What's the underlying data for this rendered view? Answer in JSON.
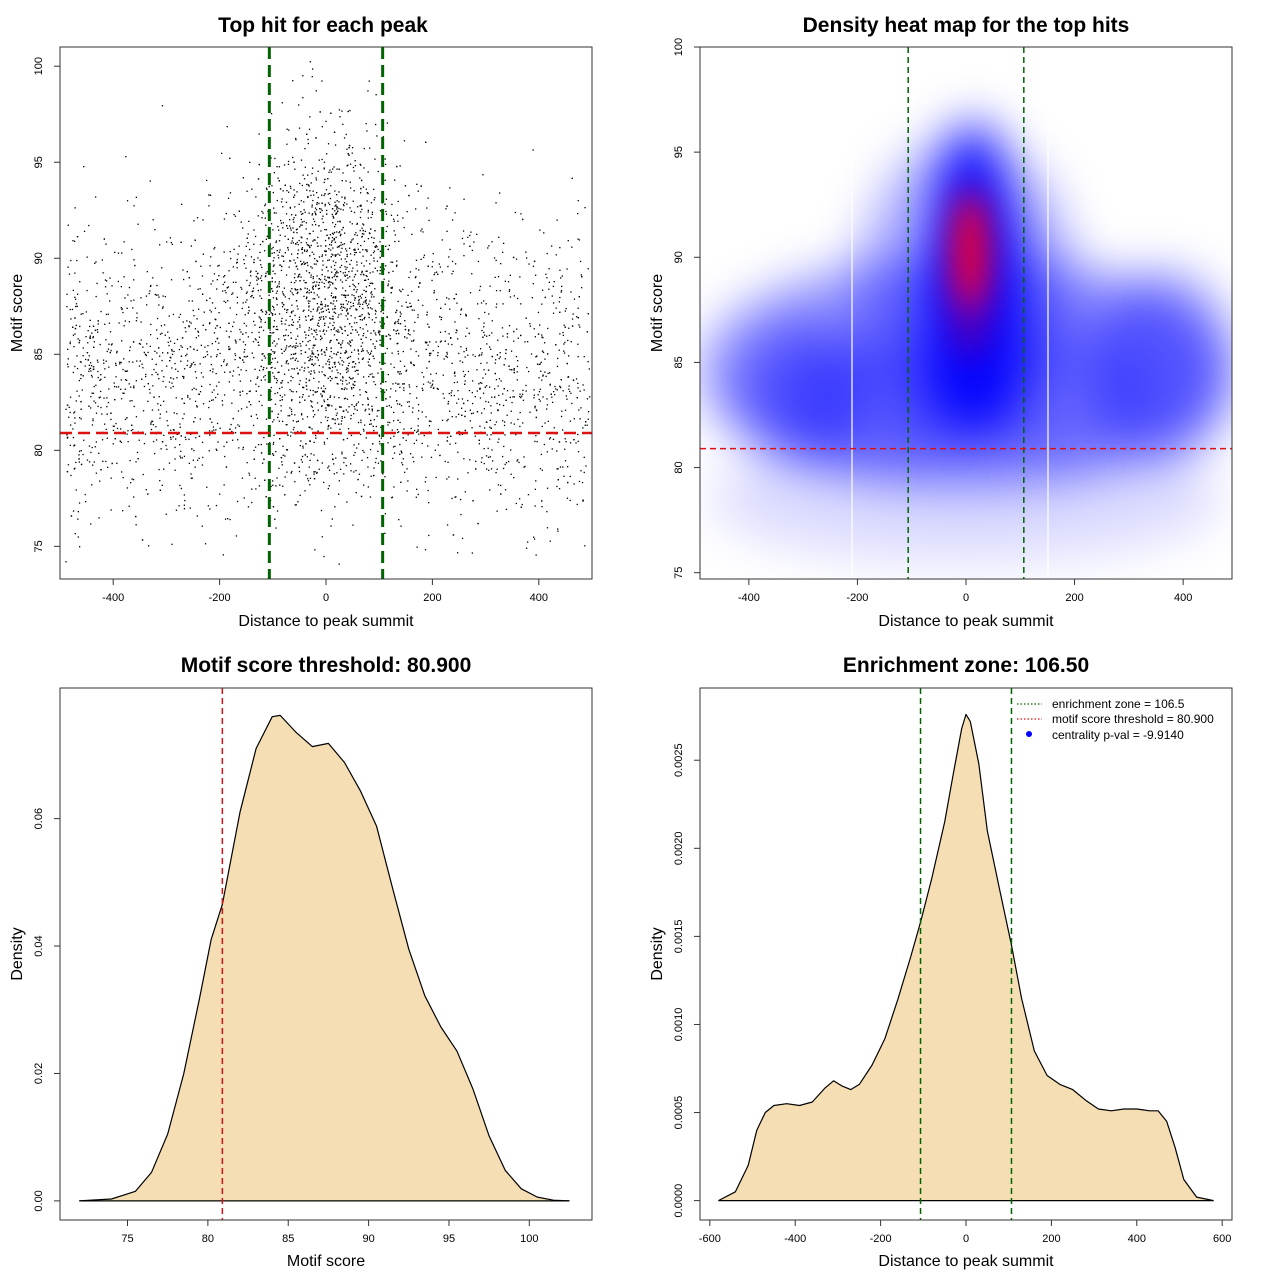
{
  "chart_data": [
    {
      "type": "scatter",
      "title": "Top hit for each peak",
      "xlabel": "Distance to peak summit",
      "ylabel": "Motif score",
      "xlim": [
        -500,
        500
      ],
      "ylim": [
        73.3,
        101.0
      ],
      "xticks": [
        -400,
        -200,
        0,
        200,
        400
      ],
      "xtick_labels": [
        "-400",
        "-200",
        "0",
        "200",
        "400"
      ],
      "yticks": [
        75,
        80,
        85,
        90,
        95,
        100
      ],
      "ytick_labels": [
        "75",
        "80",
        "85",
        "90",
        "95",
        "100"
      ],
      "n_points": 4200,
      "vlines": [
        -106.5,
        106.5
      ],
      "vline_color": "#006400",
      "hline": 80.9,
      "hline_color": "#dd1111",
      "point_color": "#000000"
    },
    {
      "type": "heatmap",
      "title": "Density heat map for the top hits",
      "xlabel": "Distance to peak summit",
      "ylabel": "Motif score",
      "xlim": [
        -490,
        490
      ],
      "ylim": [
        74.7,
        100.0
      ],
      "xticks": [
        -400,
        -200,
        0,
        200,
        400
      ],
      "xtick_labels": [
        "-400",
        "-200",
        "0",
        "200",
        "400"
      ],
      "yticks": [
        75,
        80,
        85,
        90,
        95,
        100
      ],
      "ytick_labels": [
        "75",
        "80",
        "85",
        "90",
        "95",
        "100"
      ],
      "palette": [
        "#ffffff",
        "#0000ff",
        "#ff0000"
      ],
      "peak": {
        "x": 8,
        "y": 90.3
      },
      "vlines": [
        -106.5,
        106.5
      ],
      "vline_color": "#006400",
      "hline": 80.9,
      "hline_color": "#dd1111"
    },
    {
      "type": "area",
      "title": "Motif score threshold: 80.900",
      "xlabel": "Motif score",
      "ylabel": "Density",
      "xlim": [
        70.8,
        103.9
      ],
      "ylim": [
        -0.003,
        0.0805
      ],
      "xticks": [
        75,
        80,
        85,
        90,
        95,
        100
      ],
      "xtick_labels": [
        "75",
        "80",
        "85",
        "90",
        "95",
        "100"
      ],
      "yticks": [
        0.0,
        0.02,
        0.04,
        0.06
      ],
      "ytick_labels": [
        "0.00",
        "0.02",
        "0.04",
        "0.06"
      ],
      "fill_color": "#f5deb3",
      "line_color": "#000000",
      "x": [
        72.0,
        74.0,
        75.5,
        76.5,
        77.5,
        78.5,
        79.5,
        80.2,
        80.9,
        82.0,
        83.0,
        84.0,
        84.5,
        85.5,
        86.5,
        87.5,
        88.5,
        89.5,
        90.5,
        91.5,
        92.5,
        93.5,
        94.5,
        95.5,
        96.5,
        97.5,
        98.5,
        99.5,
        100.5,
        101.5,
        102.5
      ],
      "values": [
        0.0,
        0.0003,
        0.0015,
        0.0045,
        0.0105,
        0.02,
        0.032,
        0.041,
        0.0465,
        0.061,
        0.071,
        0.076,
        0.0762,
        0.0735,
        0.0713,
        0.0718,
        0.0688,
        0.0643,
        0.0588,
        0.049,
        0.0395,
        0.0322,
        0.0273,
        0.0235,
        0.0175,
        0.0102,
        0.0048,
        0.0019,
        0.0006,
        0.0001,
        0.0
      ],
      "vline": 80.9,
      "vline_color": "#dd1111"
    },
    {
      "type": "area",
      "title": "Enrichment zone: 106.50",
      "xlabel": "Distance to peak summit",
      "ylabel": "Density",
      "xlim": [
        -623,
        623
      ],
      "ylim": [
        -0.00011,
        0.00291
      ],
      "xticks": [
        -600,
        -400,
        -200,
        0,
        200,
        400,
        600
      ],
      "xtick_labels": [
        "-600",
        "-400",
        "-200",
        "0",
        "200",
        "400",
        "600"
      ],
      "yticks": [
        0.0,
        0.0005,
        0.001,
        0.0015,
        0.002,
        0.0025
      ],
      "ytick_labels": [
        "0.0000",
        "0.0005",
        "0.0010",
        "0.0015",
        "0.0020",
        "0.0025"
      ],
      "fill_color": "#f5deb3",
      "line_color": "#000000",
      "x": [
        -580,
        -540,
        -510,
        -490,
        -470,
        -450,
        -420,
        -390,
        -360,
        -330,
        -310,
        -290,
        -270,
        -250,
        -220,
        -190,
        -160,
        -130,
        -106.5,
        -80,
        -50,
        -30,
        -10,
        0,
        10,
        30,
        50,
        80,
        106.5,
        130,
        160,
        190,
        220,
        250,
        280,
        310,
        340,
        370,
        400,
        430,
        450,
        470,
        490,
        510,
        540,
        580
      ],
      "values": [
        0.0,
        5e-05,
        0.0002,
        0.0004,
        0.0005,
        0.00054,
        0.00055,
        0.00054,
        0.00056,
        0.00064,
        0.00068,
        0.00065,
        0.00063,
        0.00066,
        0.00077,
        0.00092,
        0.00114,
        0.00138,
        0.00158,
        0.00183,
        0.00215,
        0.00242,
        0.00268,
        0.00276,
        0.00272,
        0.00248,
        0.0021,
        0.00175,
        0.00145,
        0.00115,
        0.00085,
        0.00071,
        0.00066,
        0.00063,
        0.00057,
        0.00052,
        0.00051,
        0.00052,
        0.00052,
        0.00051,
        0.00051,
        0.00045,
        0.0003,
        0.00012,
        2e-05,
        0.0
      ],
      "vlines": [
        -106.5,
        106.5
      ],
      "vline_color": "#006400",
      "legend": [
        {
          "label": "enrichment zone = 106.5",
          "style": "dotted-line",
          "color": "#006400"
        },
        {
          "label": "motif score threshold = 80.900",
          "style": "dotted-line",
          "color": "#dd1111"
        },
        {
          "label": "centrality p-val = -9.9140",
          "style": "dot",
          "color": "#0000ff"
        }
      ]
    }
  ]
}
